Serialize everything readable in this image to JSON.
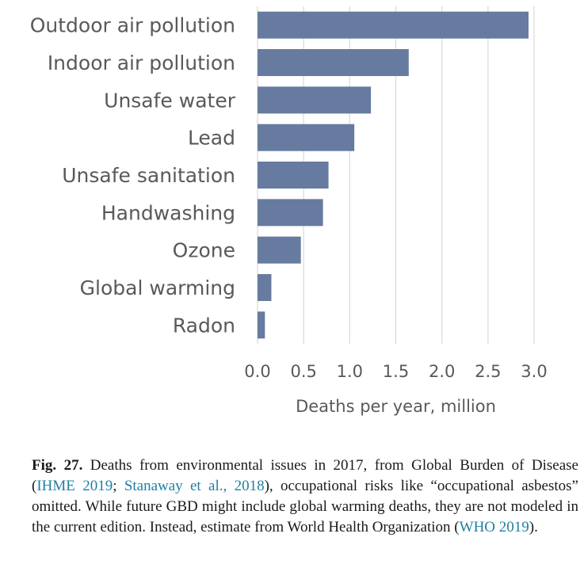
{
  "chart_data": {
    "type": "bar",
    "orientation": "horizontal",
    "categories": [
      "Outdoor air pollution",
      "Indoor air pollution",
      "Unsafe water",
      "Lead",
      "Unsafe sanitation",
      "Handwashing",
      "Ozone",
      "Global warming",
      "Radon"
    ],
    "values": [
      2.94,
      1.64,
      1.23,
      1.05,
      0.77,
      0.71,
      0.47,
      0.15,
      0.08
    ],
    "xticks": [
      "0.0",
      "0.5",
      "1.0",
      "1.5",
      "2.0",
      "2.5",
      "3.0"
    ],
    "xlim": [
      0,
      3
    ],
    "xlabel": "Deaths per year, million",
    "ylabel": "",
    "title": "",
    "grid": true,
    "bar_color": "#667b9f",
    "grid_color": "#d9d9d9"
  },
  "caption": {
    "label": "Fig. 27.",
    "text_1": " Deaths from environmental issues in 2017, from Global Burden of Disease (",
    "ref_1": "IHME 2019",
    "text_2": "; ",
    "ref_2": "Stanaway et al., 2018",
    "text_3": "), occupational risks like “occupational asbestos” omitted. While future GBD might include global warming deaths, they are not modeled in the current edition. Instead, estimate from World Health Organization (",
    "ref_3": "WHO 2019",
    "text_4": ")."
  }
}
